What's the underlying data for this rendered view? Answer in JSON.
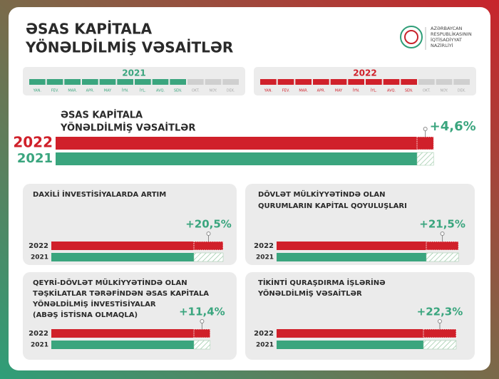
{
  "header": {
    "title": [
      "ƏSAS KAPİTALA",
      "YÖNƏLDİLMİŞ VƏSAİTLƏR"
    ],
    "logo_text": [
      "AZƏRBAYCAN",
      "RESPUBLİKASININ",
      "İQTİSADİYYAT",
      "NAZİRLİYİ"
    ]
  },
  "timeline": [
    {
      "year": "2021",
      "color": "#3aa57e",
      "active_months": 9,
      "months": [
        "YAN.",
        "FEV.",
        "MAR.",
        "APR.",
        "MAY",
        "İYN.",
        "İYL.",
        "AVQ.",
        "SEN.",
        "OKT.",
        "NOY.",
        "DEK."
      ]
    },
    {
      "year": "2022",
      "color": "#d0202a",
      "active_months": 9,
      "months": [
        "YAN.",
        "FEV.",
        "MAR.",
        "APR.",
        "MAY",
        "İYN.",
        "İYL.",
        "AVQ.",
        "SEN.",
        "OKT.",
        "NOY.",
        "DEK."
      ]
    }
  ],
  "panels": [
    {
      "title": [
        "ƏSAS KAPİTALA",
        "YÖNƏLDİLMİŞ VƏSAİTLƏR"
      ],
      "years": [
        "2022",
        "2021"
      ],
      "change": {
        "value": 4.6,
        "label": "+4,6%"
      }
    },
    {
      "title": [
        "DAXİLİ İNVESTİSİYALARDA ARTIM"
      ],
      "years": [
        "2022",
        "2021"
      ],
      "change": {
        "value": 20.5,
        "label": "+20,5%"
      }
    },
    {
      "title": [
        "DÖVLƏT MÜLKİYYƏTİNDƏ OLAN",
        "QURUMLARIN KAPİTAL QOYULUŞLARI"
      ],
      "years": [
        "2022",
        "2021"
      ],
      "change": {
        "value": 21.5,
        "label": "+21,5%"
      }
    },
    {
      "title": [
        "QEYRİ-DÖVLƏT MÜLKİYYƏTİNDƏ OLAN",
        "TƏŞKİLATLAR TƏRƏFİNDƏN ƏSAS KAPİTALA",
        "YÖNƏLDİLMİŞ İNVESTİSİYALAR",
        "(ABƏŞ İSTİSNA OLMAQLA)"
      ],
      "years": [
        "2022",
        "2021"
      ],
      "change": {
        "value": 11.4,
        "label": "+11,4%"
      }
    },
    {
      "title": [
        "TİKİNTİ QURAŞDIRMA İŞLƏRİNƏ",
        "YÖNƏLDİLMİŞ VƏSAİTLƏR"
      ],
      "years": [
        "2022",
        "2021"
      ],
      "change": {
        "value": 22.3,
        "label": "+22,3%"
      }
    }
  ]
}
